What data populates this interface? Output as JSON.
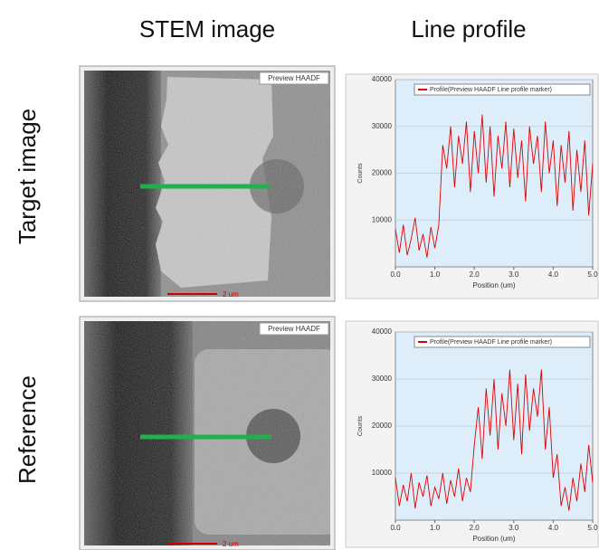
{
  "headers": [
    "STEM image",
    "Line profile"
  ],
  "rows": [
    {
      "label": "Target image",
      "image_label": "Preview HAADF",
      "scale_bar": "2 um"
    },
    {
      "label": "Reference",
      "image_label": "Preview HAADF",
      "scale_bar": "2 um"
    }
  ],
  "chart_data": [
    {
      "type": "line",
      "x_label": "Position (um)",
      "y_label": "Counts",
      "x": [
        0.0,
        0.1,
        0.2,
        0.3,
        0.4,
        0.5,
        0.6,
        0.7,
        0.8,
        0.9,
        1.0,
        1.1,
        1.2,
        1.3,
        1.4,
        1.5,
        1.6,
        1.7,
        1.8,
        1.9,
        2.0,
        2.1,
        2.2,
        2.3,
        2.4,
        2.5,
        2.6,
        2.7,
        2.8,
        2.9,
        3.0,
        3.1,
        3.2,
        3.3,
        3.4,
        3.5,
        3.6,
        3.7,
        3.8,
        3.9,
        4.0,
        4.1,
        4.2,
        4.3,
        4.4,
        4.5,
        4.6,
        4.7,
        4.8,
        4.9,
        5.0
      ],
      "series": [
        {
          "name": "Profile(Preview HAADF Line profile marker)",
          "color": "#e00000",
          "values": [
            8000,
            3000,
            9000,
            2500,
            6000,
            10500,
            3500,
            7000,
            2000,
            8500,
            4000,
            9000,
            26000,
            21000,
            30000,
            17000,
            28000,
            22000,
            31000,
            16000,
            29000,
            20000,
            32500,
            18000,
            30000,
            15000,
            28000,
            21000,
            31000,
            17000,
            29500,
            19000,
            27000,
            14000,
            30000,
            22000,
            28000,
            16000,
            31000,
            20000,
            27000,
            13000,
            26000,
            18000,
            29000,
            12000,
            25000,
            16000,
            27000,
            11000,
            22000
          ]
        }
      ],
      "xlim": [
        0,
        5
      ],
      "ylim": [
        0,
        40000
      ],
      "xticks": [
        {
          "value": 0,
          "label": "0.0"
        },
        {
          "value": 1,
          "label": "1.0"
        },
        {
          "value": 2,
          "label": "2.0"
        },
        {
          "value": 3,
          "label": "3.0"
        },
        {
          "value": 4,
          "label": "4.0"
        },
        {
          "value": 5,
          "label": "5.0"
        }
      ],
      "yticks": [
        10000,
        20000,
        30000,
        40000
      ],
      "grid": true
    },
    {
      "type": "line",
      "x_label": "Position (um)",
      "y_label": "Counts",
      "x": [
        0.0,
        0.1,
        0.2,
        0.3,
        0.4,
        0.5,
        0.6,
        0.7,
        0.8,
        0.9,
        1.0,
        1.1,
        1.2,
        1.3,
        1.4,
        1.5,
        1.6,
        1.7,
        1.8,
        1.9,
        2.0,
        2.1,
        2.2,
        2.3,
        2.4,
        2.5,
        2.6,
        2.7,
        2.8,
        2.9,
        3.0,
        3.1,
        3.2,
        3.3,
        3.4,
        3.5,
        3.6,
        3.7,
        3.8,
        3.9,
        4.0,
        4.1,
        4.2,
        4.3,
        4.4,
        4.5,
        4.6,
        4.7,
        4.8,
        4.9,
        5.0
      ],
      "series": [
        {
          "name": "Profile(Preview HAADF Line profile marker)",
          "color": "#e00000",
          "values": [
            9000,
            3000,
            7500,
            4000,
            10000,
            2500,
            8000,
            5000,
            9500,
            3000,
            7000,
            4500,
            10000,
            3500,
            8500,
            5000,
            11000,
            4000,
            9000,
            6000,
            16000,
            24000,
            13000,
            28000,
            18000,
            30000,
            15000,
            27000,
            20000,
            32000,
            17000,
            29000,
            14000,
            31000,
            19000,
            28000,
            22000,
            32000,
            15000,
            24000,
            9000,
            14000,
            3000,
            7000,
            2000,
            9000,
            4000,
            12000,
            6000,
            16000,
            8000
          ]
        }
      ],
      "xlim": [
        0,
        5
      ],
      "ylim": [
        0,
        40000
      ],
      "xticks": [
        {
          "value": 0,
          "label": "0.0"
        },
        {
          "value": 1,
          "label": "1.0"
        },
        {
          "value": 2,
          "label": "2.0"
        },
        {
          "value": 3,
          "label": "3.0"
        },
        {
          "value": 4,
          "label": "4.0"
        },
        {
          "value": 5,
          "label": "5.0"
        }
      ],
      "yticks": [
        10000,
        20000,
        30000,
        40000
      ],
      "grid": true
    }
  ]
}
